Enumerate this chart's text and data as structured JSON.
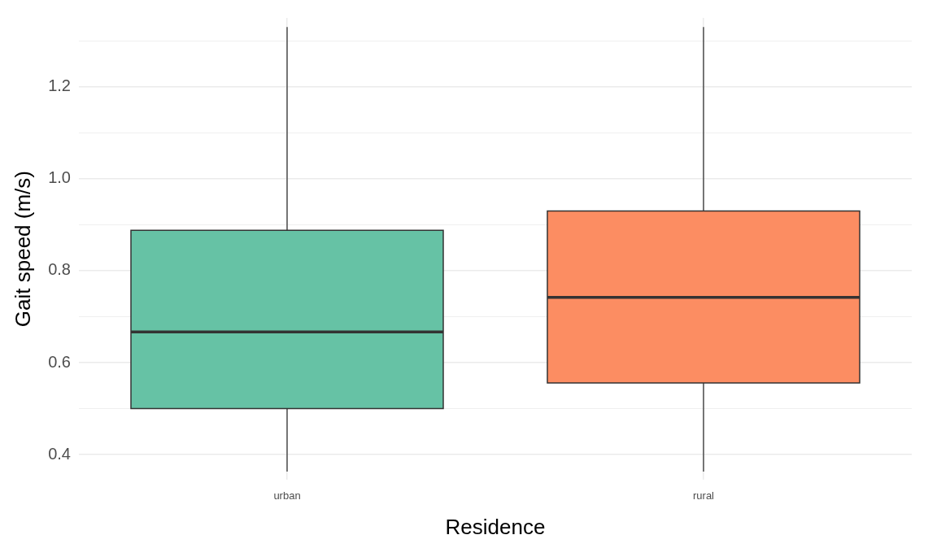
{
  "chart_data": {
    "type": "box",
    "xlabel": "Residence",
    "ylabel": "Gait speed (m/s)",
    "categories": [
      "urban",
      "rural"
    ],
    "colors": [
      "#66c2a5",
      "#fc8d62"
    ],
    "boxes": [
      {
        "low": 0.363,
        "q1": 0.5,
        "median": 0.667,
        "q3": 0.888,
        "high": 1.33
      },
      {
        "low": 0.363,
        "q1": 0.556,
        "median": 0.742,
        "q3": 0.93,
        "high": 1.33
      }
    ],
    "ylim": [
      0.345,
      1.35
    ],
    "yticks": [
      {
        "value": 0.4,
        "label": "0.4"
      },
      {
        "value": 0.5,
        "label": null
      },
      {
        "value": 0.6,
        "label": "0.6"
      },
      {
        "value": 0.7,
        "label": null
      },
      {
        "value": 0.8,
        "label": "0.8"
      },
      {
        "value": 0.9,
        "label": null
      },
      {
        "value": 1,
        "label": "1.0"
      },
      {
        "value": 1.1,
        "label": null
      },
      {
        "value": 1.2,
        "label": "1.2"
      },
      {
        "value": 1.3,
        "label": null
      }
    ],
    "grid": true,
    "legend": false
  }
}
